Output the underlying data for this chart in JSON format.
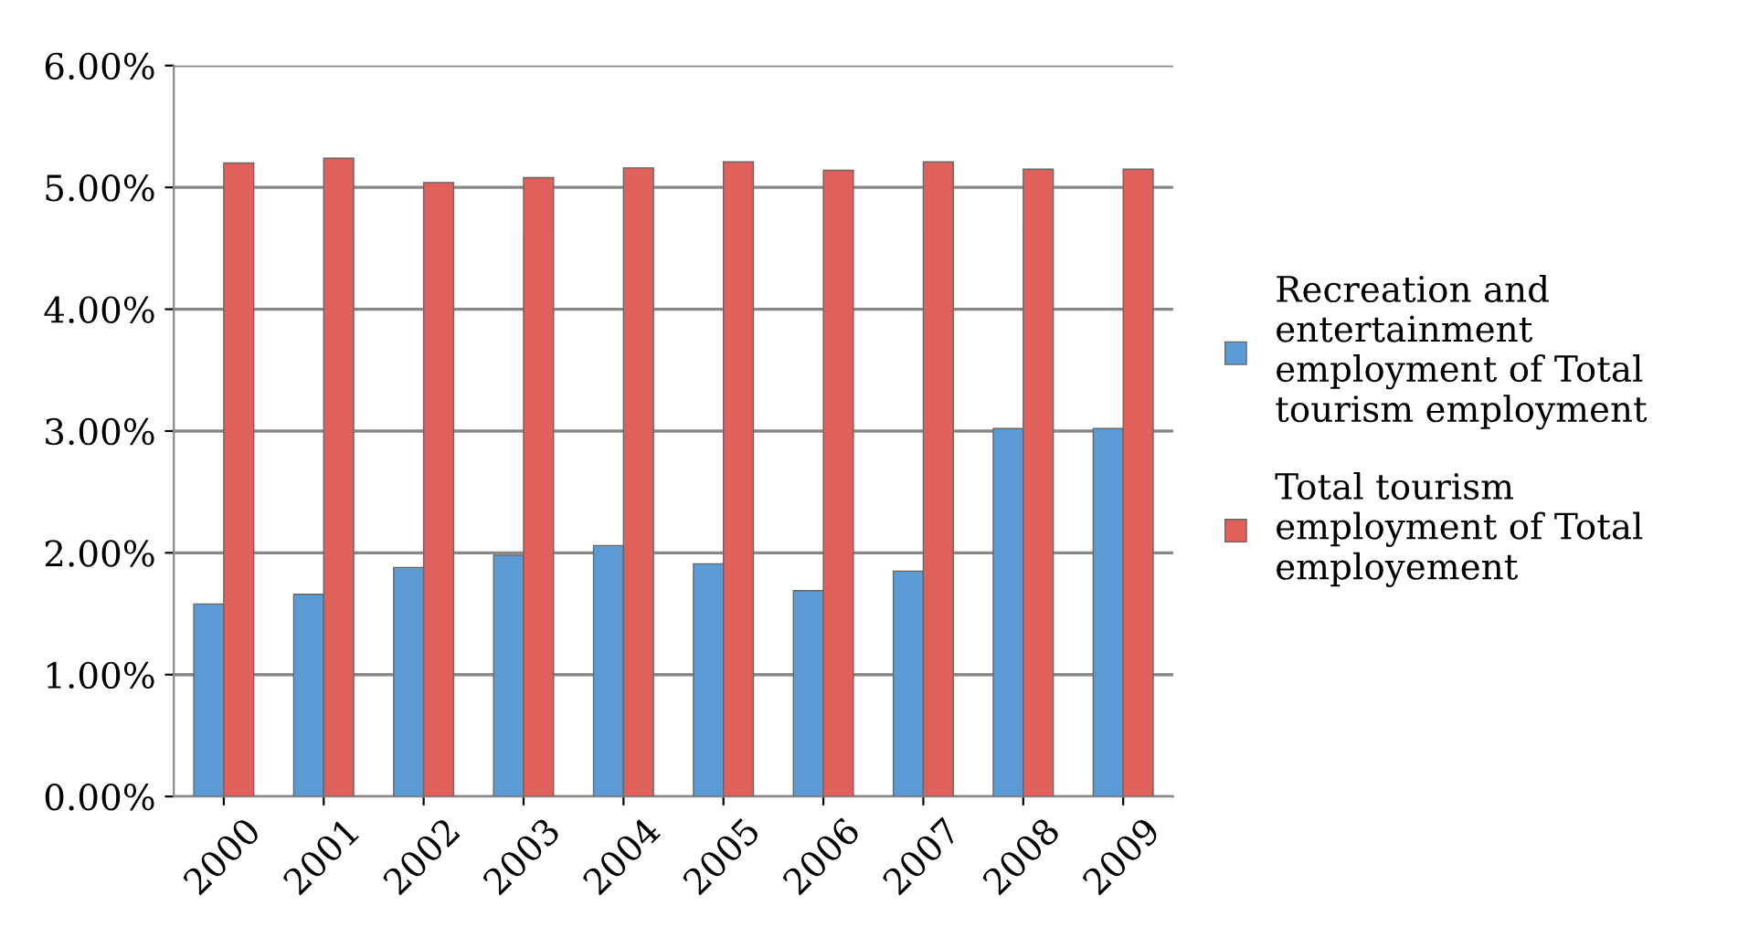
{
  "chart_data": {
    "type": "bar",
    "categories": [
      "2000",
      "2001",
      "2002",
      "2003",
      "2004",
      "2005",
      "2006",
      "2007",
      "2008",
      "2009"
    ],
    "series": [
      {
        "name": "Recreation and entertainment employment of Total tourism employment",
        "color": "#5b9bd5",
        "values": [
          1.58,
          1.66,
          1.88,
          1.98,
          2.06,
          1.91,
          1.69,
          1.85,
          3.02,
          3.02
        ]
      },
      {
        "name": "Total tourism employment of Total employement",
        "color": "#e0605c",
        "values": [
          5.2,
          5.24,
          5.04,
          5.08,
          5.16,
          5.21,
          5.14,
          5.21,
          5.15,
          5.15
        ]
      }
    ],
    "ylim": [
      0,
      6
    ],
    "yticks": [
      {
        "value": 0,
        "label": "0.00%"
      },
      {
        "value": 1,
        "label": "1.00%"
      },
      {
        "value": 2,
        "label": "2.00%"
      },
      {
        "value": 3,
        "label": "3.00%"
      },
      {
        "value": 4,
        "label": "4.00%"
      },
      {
        "value": 5,
        "label": "5.00%"
      },
      {
        "value": 6,
        "label": "6.00%"
      }
    ],
    "grid": "y",
    "legend": "right"
  }
}
